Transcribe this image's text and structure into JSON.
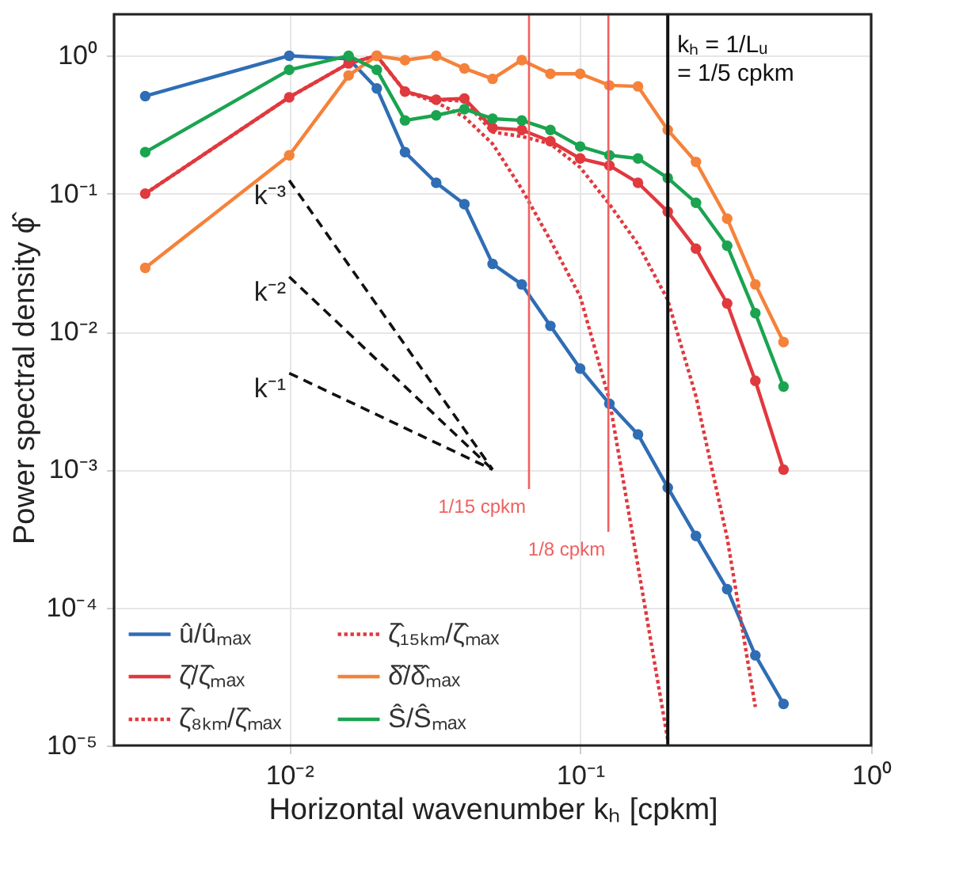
{
  "chart_data": {
    "type": "line",
    "xlabel": "Horizontal wavenumber kₕ [cpkm]",
    "ylabel": "Power spectral density ϕ̂",
    "log": "xy",
    "grid": true,
    "legend": "bottom left",
    "xlim": [
      0.0025,
      1
    ],
    "ylim": [
      1e-05,
      2
    ],
    "xticks": [
      {
        "value": 0.01,
        "label": "10⁻²"
      },
      {
        "value": 0.1,
        "label": "10⁻¹"
      },
      {
        "value": 1,
        "label": "10⁰"
      }
    ],
    "yticks": [
      {
        "value": 1e-05,
        "label": "10⁻⁵"
      },
      {
        "value": 0.0001,
        "label": "10⁻⁴"
      },
      {
        "value": 0.001,
        "label": "10⁻³"
      },
      {
        "value": 0.01,
        "label": "10⁻²"
      },
      {
        "value": 0.1,
        "label": "10⁻¹"
      },
      {
        "value": 1,
        "label": "10⁰"
      }
    ],
    "x": [
      0.0032,
      0.01,
      0.016,
      0.02,
      0.025,
      0.032,
      0.04,
      0.05,
      0.063,
      0.079,
      0.1,
      0.126,
      0.158,
      0.2,
      0.25,
      0.32,
      0.4,
      0.5
    ],
    "series": [
      {
        "name": "û/ûₘₐₓ",
        "color": "#2f6db5",
        "marker": "circle",
        "line_style": "solid",
        "values": [
          0.51,
          1.0,
          0.95,
          0.58,
          0.2,
          0.12,
          0.084,
          0.031,
          0.022,
          0.011,
          0.0054,
          0.003,
          0.0018,
          0.00074,
          0.00033,
          0.000136,
          4.5e-05,
          2e-05
        ]
      },
      {
        "name": "ζ̂/ζ̂ₘₐₓ",
        "color": "#e0393e",
        "marker": "circle",
        "line_style": "solid",
        "values": [
          0.1,
          0.5,
          0.88,
          1.0,
          0.55,
          0.48,
          0.49,
          0.3,
          0.29,
          0.24,
          0.18,
          0.16,
          0.12,
          0.074,
          0.04,
          0.016,
          0.0044,
          0.001
        ]
      },
      {
        "name": "ζ̂₈ₖₘ/ζ̂ₘₐₓ",
        "color": "#e0393e",
        "marker": "none",
        "line_style": "dotted",
        "x": [
          0.0032,
          0.01,
          0.016,
          0.02,
          0.025,
          0.032,
          0.04,
          0.05,
          0.063,
          0.079,
          0.1,
          0.126,
          0.158,
          0.2,
          0.25,
          0.32,
          0.4
        ],
        "values": [
          0.1,
          0.5,
          0.88,
          1.0,
          0.55,
          0.48,
          0.47,
          0.28,
          0.26,
          0.23,
          0.155,
          0.084,
          0.043,
          0.017,
          0.0034,
          0.00032,
          1.9e-05
        ]
      },
      {
        "name": "ζ̂₁₅ₖₘ/ζ̂ₘₐₓ",
        "color": "#e0393e",
        "marker": "none",
        "line_style": "dotted",
        "x": [
          0.0032,
          0.01,
          0.016,
          0.02,
          0.025,
          0.032,
          0.04,
          0.05,
          0.063,
          0.079,
          0.1,
          0.126,
          0.158,
          0.2
        ],
        "values": [
          0.1,
          0.5,
          0.88,
          1.0,
          0.55,
          0.46,
          0.36,
          0.23,
          0.108,
          0.046,
          0.018,
          0.0032,
          0.0002,
          1.1e-05
        ]
      },
      {
        "name": "δ̂/δ̂ₘₐₓ",
        "color": "#f5823a",
        "marker": "circle",
        "line_style": "solid",
        "values": [
          0.029,
          0.19,
          0.72,
          1.0,
          0.93,
          1.0,
          0.81,
          0.68,
          0.93,
          0.74,
          0.74,
          0.61,
          0.6,
          0.29,
          0.17,
          0.066,
          0.022,
          0.0084
        ]
      },
      {
        "name": "Ŝ/Ŝₘₐₓ",
        "color": "#1aa450",
        "marker": "circle",
        "line_style": "solid",
        "values": [
          0.2,
          0.79,
          1.0,
          0.79,
          0.34,
          0.37,
          0.41,
          0.35,
          0.34,
          0.29,
          0.22,
          0.19,
          0.18,
          0.13,
          0.086,
          0.042,
          0.0136,
          0.004
        ]
      },
      {
        "color": "#111111",
        "marker": "none",
        "line_style": "dashed",
        "x": [
          0.01,
          0.05
        ],
        "values": [
          0.125,
          0.001
        ]
      },
      {
        "color": "#111111",
        "marker": "none",
        "line_style": "dashed",
        "x": [
          0.01,
          0.05
        ],
        "values": [
          0.025,
          0.001
        ]
      },
      {
        "color": "#111111",
        "marker": "none",
        "line_style": "dashed",
        "x": [
          0.01,
          0.05
        ],
        "values": [
          0.005,
          0.001
        ]
      }
    ],
    "annotations": [
      "k⁻³",
      "k⁻²",
      "k⁻¹",
      "kₕ = 1/Lᵤ\n      = 1/5 cpkm"
    ],
    "ref_lines": [
      {
        "axis": "x",
        "value": 0.0667,
        "label": "1/15 cpkm",
        "color": "#f06060"
      },
      {
        "axis": "x",
        "value": 0.125,
        "label": "1/8 cpkm",
        "color": "#f06060"
      },
      {
        "axis": "x",
        "value": 0.2,
        "color": "#111111"
      }
    ]
  }
}
